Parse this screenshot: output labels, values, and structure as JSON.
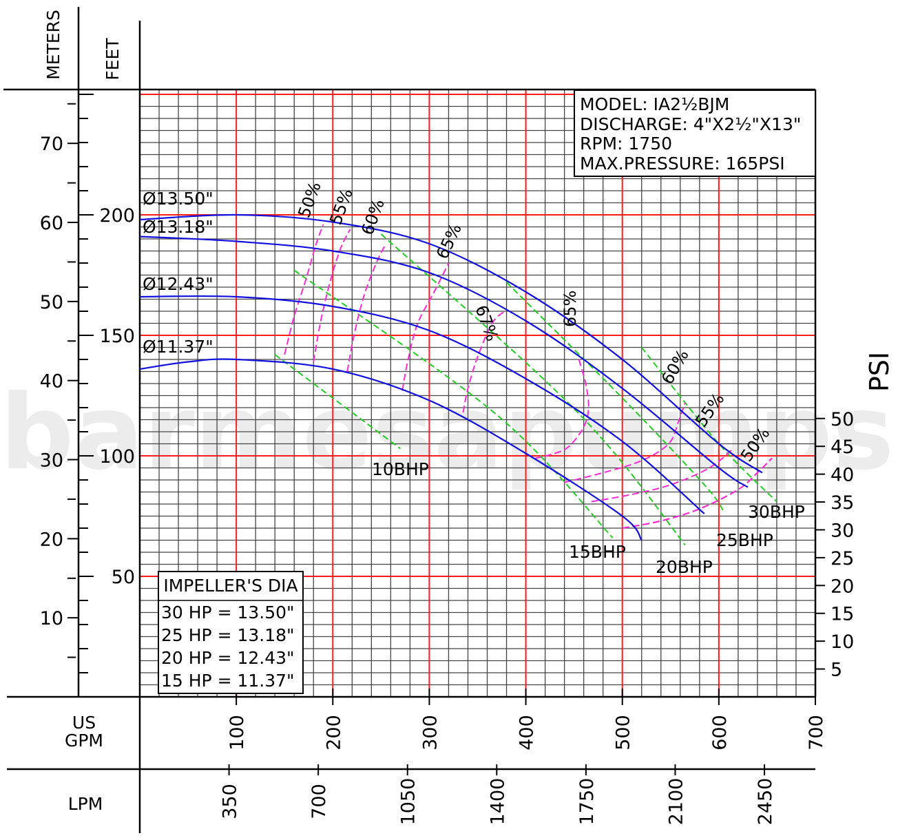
{
  "chart_data": {
    "type": "line",
    "watermark": "barmesapumps",
    "model_box": {
      "lines": [
        "MODEL: IA2½BJM",
        "DISCHARGE: 4\"X2½\"X13\"",
        "RPM: 1750",
        "MAX.PRESSURE: 165PSI"
      ]
    },
    "impeller_box": {
      "title": "IMPELLER'S DIA",
      "rows": [
        "30 HP = 13.50\"",
        "25 HP = 13.18\"",
        "20 HP = 12.43\"",
        "15 HP = 11.37\""
      ]
    },
    "axes": {
      "meters": {
        "title": "METERS",
        "ticks": [
          "10",
          "20",
          "30",
          "40",
          "50",
          "60",
          "70"
        ]
      },
      "feet": {
        "title": "FEET",
        "ticks": [
          "50",
          "100",
          "150",
          "200"
        ],
        "range": [
          0,
          252
        ]
      },
      "psi": {
        "title": "PSI",
        "ticks": [
          "5",
          "10",
          "15",
          "20",
          "25",
          "30",
          "35",
          "40",
          "45",
          "50"
        ]
      },
      "gpm": {
        "title": "US GPM",
        "ticks": [
          "100",
          "200",
          "300",
          "400",
          "500",
          "600",
          "700"
        ],
        "range": [
          0,
          700
        ]
      },
      "lpm": {
        "title": "LPM",
        "ticks": [
          "350",
          "700",
          "1050",
          "1400",
          "1750",
          "2100",
          "2450"
        ]
      }
    },
    "head_curves": [
      {
        "name": "Ø13.50\"",
        "points": [
          [
            0,
            198
          ],
          [
            100,
            200
          ],
          [
            200,
            197
          ],
          [
            300,
            188
          ],
          [
            400,
            168
          ],
          [
            500,
            140
          ],
          [
            600,
            105
          ],
          [
            645,
            93
          ]
        ]
      },
      {
        "name": "Ø13.18\"",
        "points": [
          [
            0,
            191
          ],
          [
            100,
            189
          ],
          [
            200,
            185
          ],
          [
            300,
            176
          ],
          [
            400,
            156
          ],
          [
            500,
            128
          ],
          [
            600,
            95
          ],
          [
            630,
            87
          ]
        ]
      },
      {
        "name": "Ø12.43\"",
        "points": [
          [
            0,
            166
          ],
          [
            100,
            166
          ],
          [
            200,
            162
          ],
          [
            300,
            152
          ],
          [
            400,
            132
          ],
          [
            500,
            106
          ],
          [
            585,
            76
          ]
        ]
      },
      {
        "name": "Ø11.37\"",
        "points": [
          [
            0,
            136
          ],
          [
            50,
            139
          ],
          [
            100,
            140
          ],
          [
            200,
            136
          ],
          [
            300,
            123
          ],
          [
            400,
            101
          ],
          [
            500,
            75
          ],
          [
            520,
            65
          ]
        ]
      }
    ],
    "efficiency_curves": [
      {
        "label": "50%",
        "points": [
          [
            150,
            142
          ],
          [
            160,
            158
          ],
          [
            172,
            173
          ],
          [
            182,
            187
          ],
          [
            190,
            196
          ]
        ]
      },
      {
        "label": "55%",
        "points": [
          [
            180,
            139
          ],
          [
            187,
            155
          ],
          [
            197,
            172
          ],
          [
            208,
            186
          ],
          [
            218,
            194
          ]
        ]
      },
      {
        "label": "55%",
        "points": [
          [
            215,
            135
          ],
          [
            222,
            150
          ],
          [
            232,
            166
          ],
          [
            245,
            180
          ],
          [
            255,
            188
          ]
        ]
      },
      {
        "label": "60%",
        "points": [
          [
            272,
            127
          ],
          [
            278,
            140
          ],
          [
            288,
            155
          ],
          [
            305,
            168
          ],
          [
            320,
            180
          ]
        ]
      },
      {
        "label": "65%",
        "points": [
          [
            335,
            118
          ],
          [
            340,
            128
          ],
          [
            350,
            141
          ],
          [
            365,
            155
          ],
          [
            378,
            160
          ]
        ]
      },
      {
        "label": "67%",
        "points": [
          [
            455,
            140
          ],
          [
            462,
            130
          ],
          [
            465,
            120
          ],
          [
            460,
            112
          ],
          [
            445,
            104
          ],
          [
            430,
            101
          ],
          [
            410,
            99
          ]
        ]
      },
      {
        "label": "65%",
        "points": [
          [
            440,
            89
          ],
          [
            480,
            93
          ],
          [
            520,
            98
          ],
          [
            548,
            105
          ],
          [
            558,
            114
          ],
          [
            565,
            122
          ]
        ]
      },
      {
        "label": "60%",
        "points": [
          [
            468,
            81
          ],
          [
            510,
            84
          ],
          [
            550,
            88
          ],
          [
            590,
            95
          ],
          [
            615,
            103
          ]
        ]
      },
      {
        "label": "55%",
        "points": [
          [
            500,
            70
          ],
          [
            540,
            73
          ],
          [
            580,
            78
          ],
          [
            620,
            86
          ],
          [
            640,
            93
          ],
          [
            655,
            99
          ]
        ]
      },
      {
        "label": "50%",
        "points": [
          [
            500,
            70
          ],
          [
            540,
            73
          ],
          [
            580,
            78
          ],
          [
            620,
            86
          ],
          [
            640,
            93
          ],
          [
            655,
            99
          ]
        ]
      }
    ],
    "bhp_lines": [
      {
        "label": "10BHP",
        "points": [
          [
            140,
            142
          ],
          [
            270,
            103
          ]
        ]
      },
      {
        "label": "15BHP",
        "points": [
          [
            160,
            177
          ],
          [
            370,
            117
          ],
          [
            490,
            66
          ]
        ]
      },
      {
        "label": "20BHP",
        "points": [
          [
            250,
            192
          ],
          [
            410,
            135
          ],
          [
            490,
            102
          ],
          [
            565,
            63
          ]
        ]
      },
      {
        "label": "25BHP",
        "points": [
          [
            380,
            172
          ],
          [
            500,
            124
          ],
          [
            585,
            88
          ],
          [
            605,
            77
          ]
        ]
      },
      {
        "label": "30BHP",
        "points": [
          [
            520,
            145
          ],
          [
            600,
            105
          ],
          [
            660,
            81
          ]
        ]
      }
    ]
  }
}
